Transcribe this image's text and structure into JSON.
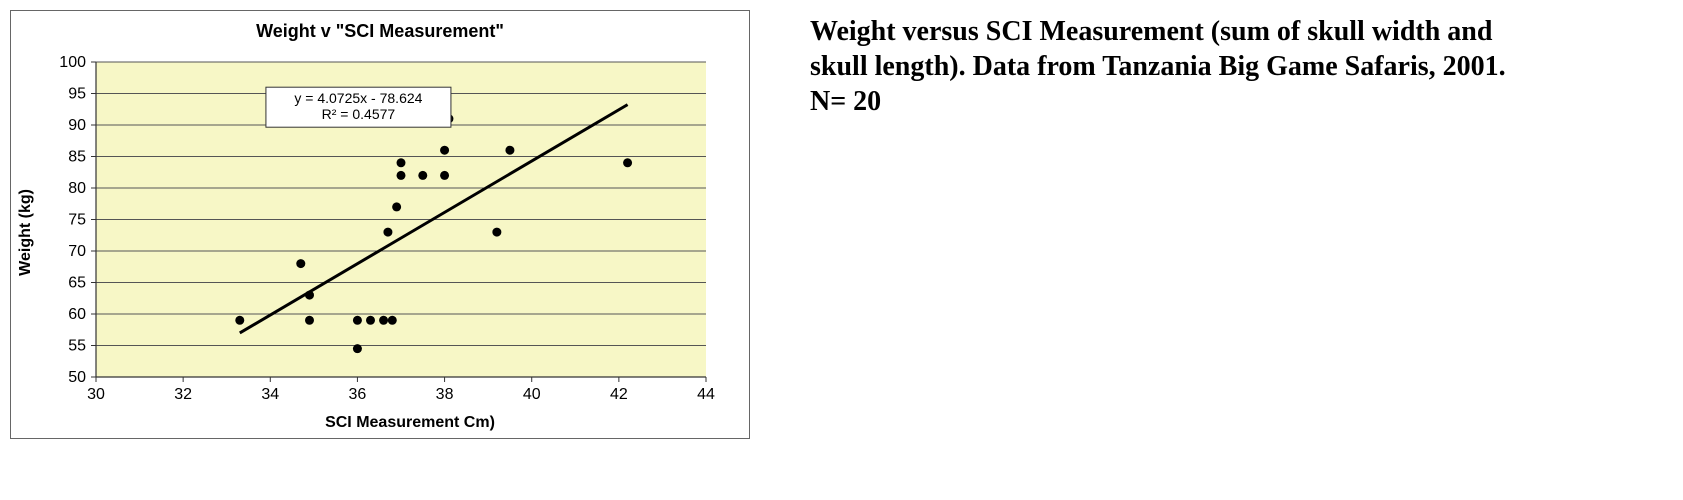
{
  "chart": {
    "title": "Weight v \"SCI Measurement\"",
    "xlabel": "SCI Measurement Cm)",
    "ylabel": "Weight (kg)",
    "type": "scatter",
    "xlim": [
      30,
      44
    ],
    "ylim": [
      50,
      100
    ],
    "xtick_step": 2,
    "ytick_step": 5,
    "plot_bg": "#f7f7c6",
    "grid_color": "#555555",
    "axis_color": "#333333",
    "tick_fontsize": 16,
    "marker_color": "#000000",
    "marker_radius": 4.5,
    "line_color": "#000000",
    "line_width": 3,
    "trend": {
      "slope": 4.0725,
      "intercept": -78.624,
      "r2": 0.4577,
      "x_start": 33.3,
      "x_end": 42.2
    },
    "eq_box": {
      "lines": [
        "y = 4.0725x - 78.624",
        "R² = 0.4577"
      ],
      "border": "#333333",
      "bg": "#ffffff",
      "fontsize": 14,
      "x": 33.9,
      "y_top": 96
    },
    "points": [
      {
        "x": 33.3,
        "y": 59
      },
      {
        "x": 34.7,
        "y": 68
      },
      {
        "x": 34.9,
        "y": 63
      },
      {
        "x": 34.9,
        "y": 59
      },
      {
        "x": 36.0,
        "y": 54.5
      },
      {
        "x": 36.0,
        "y": 59
      },
      {
        "x": 36.3,
        "y": 59
      },
      {
        "x": 36.6,
        "y": 59
      },
      {
        "x": 36.8,
        "y": 59
      },
      {
        "x": 36.7,
        "y": 73
      },
      {
        "x": 36.9,
        "y": 77
      },
      {
        "x": 37.0,
        "y": 82
      },
      {
        "x": 37.0,
        "y": 84
      },
      {
        "x": 37.5,
        "y": 82
      },
      {
        "x": 38.0,
        "y": 82
      },
      {
        "x": 38.0,
        "y": 86
      },
      {
        "x": 38.1,
        "y": 91
      },
      {
        "x": 39.2,
        "y": 73
      },
      {
        "x": 39.5,
        "y": 86
      },
      {
        "x": 42.2,
        "y": 84
      }
    ]
  },
  "caption": {
    "line1": "Weight versus SCI Measurement (sum of skull width and",
    "line2": "skull length). Data from Tanzania Big Game Safaris, 2001.",
    "line3": "N= 20"
  }
}
